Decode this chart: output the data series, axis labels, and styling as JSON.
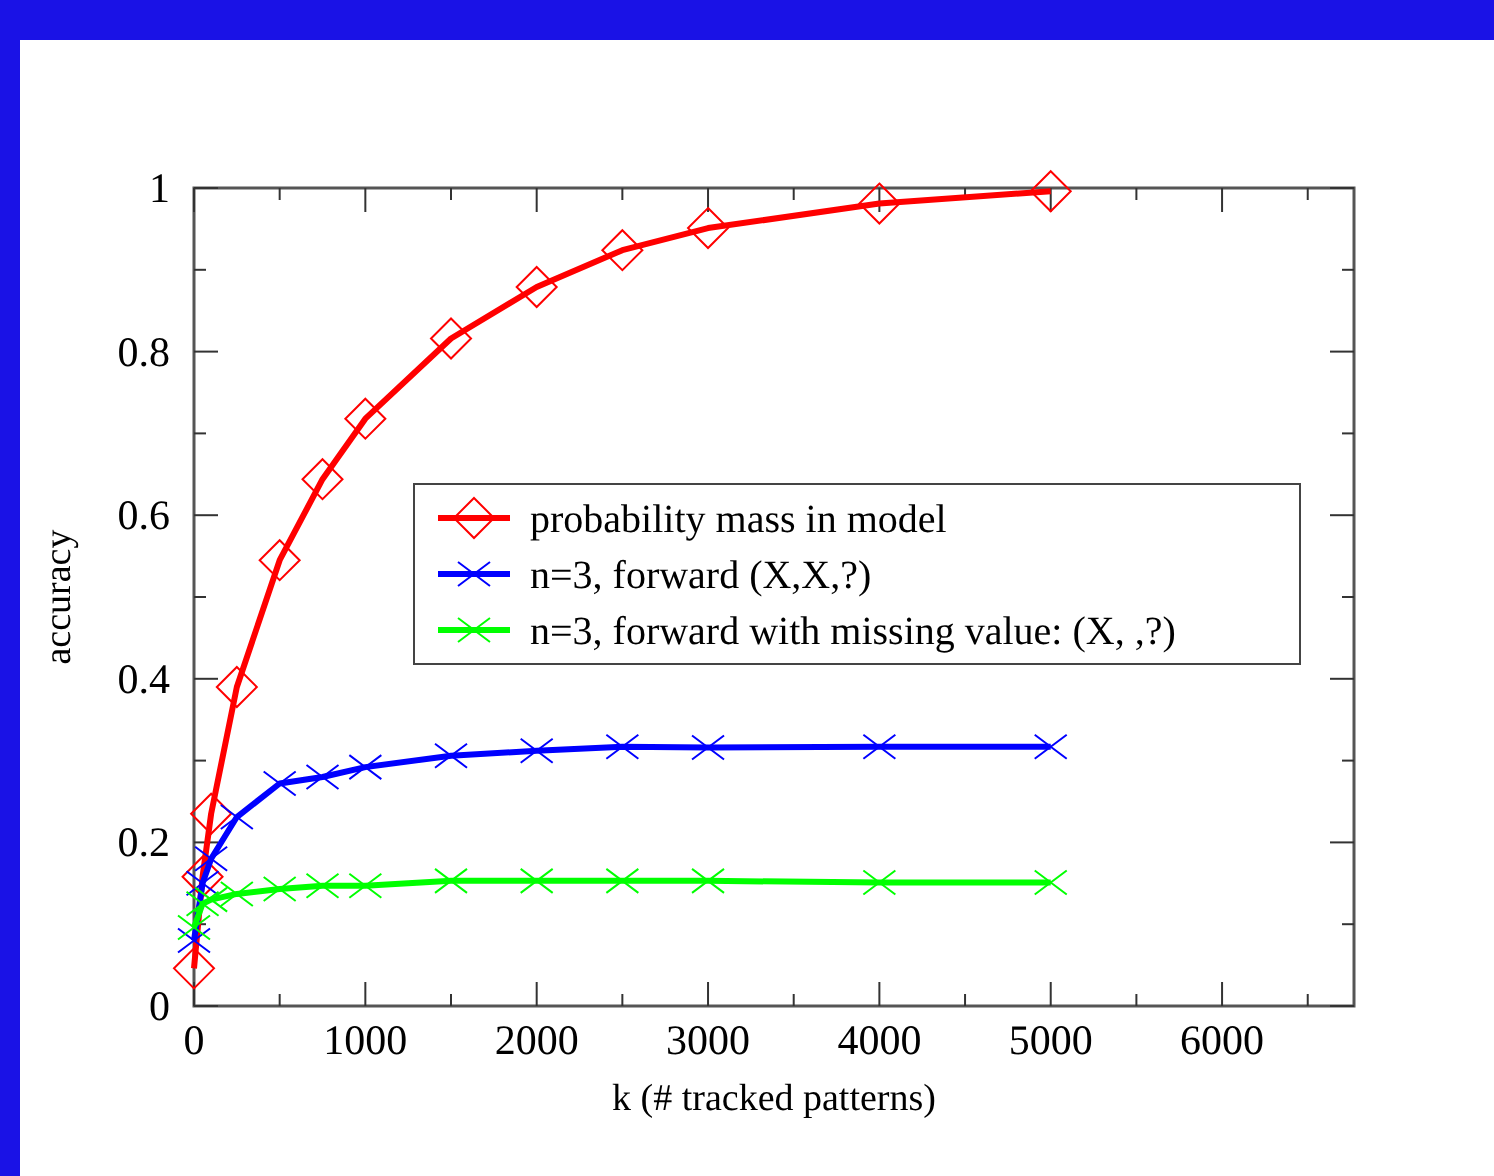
{
  "chart_data": {
    "type": "line",
    "xlabel": "k (# tracked patterns)",
    "ylabel": "accuracy",
    "xlim": [
      0,
      6770
    ],
    "ylim": [
      0,
      1
    ],
    "xticks": [
      0,
      {
        "value": 500,
        "label": null
      },
      1000,
      {
        "value": 1500,
        "label": null
      },
      2000,
      {
        "value": 2500,
        "label": null
      },
      3000,
      {
        "value": 3500,
        "label": null
      },
      4000,
      {
        "value": 4500,
        "label": null
      },
      5000,
      {
        "value": 5500,
        "label": null
      },
      6000,
      {
        "value": 6500,
        "label": null
      }
    ],
    "yticks": [
      0,
      {
        "value": 0.1,
        "label": null
      },
      0.2,
      {
        "value": 0.3,
        "label": null
      },
      0.4,
      {
        "value": 0.5,
        "label": null
      },
      0.6,
      {
        "value": 0.7,
        "label": null
      },
      0.8,
      {
        "value": 0.9,
        "label": null
      },
      1
    ],
    "grid": false,
    "legend": "right",
    "series": [
      {
        "name": "probability mass in model",
        "color": "#ff0000",
        "marker": "diamond",
        "x": [
          0,
          50,
          100,
          250,
          500,
          750,
          1000,
          1500,
          2000,
          2500,
          3000,
          4000,
          5000
        ],
        "values": [
          0.046,
          0.158,
          0.235,
          0.39,
          0.545,
          0.644,
          0.718,
          0.816,
          0.879,
          0.924,
          0.951,
          0.981,
          0.996
        ]
      },
      {
        "name": "n=3, forward (X,X,?)",
        "color": "#0000ff",
        "marker": "cross",
        "x": [
          0,
          50,
          100,
          250,
          500,
          750,
          1000,
          1500,
          2000,
          2500,
          3000,
          4000,
          5000
        ],
        "values": [
          0.08,
          0.15,
          0.18,
          0.231,
          0.272,
          0.28,
          0.292,
          0.306,
          0.312,
          0.317,
          0.316,
          0.317,
          0.317
        ]
      },
      {
        "name": "n=3, forward with missing value: (X, ,?)",
        "color": "#00ff00",
        "marker": "cross",
        "x": [
          0,
          50,
          100,
          250,
          500,
          750,
          1000,
          1500,
          2000,
          2500,
          3000,
          4000,
          5000
        ],
        "values": [
          0.096,
          0.125,
          0.13,
          0.137,
          0.143,
          0.147,
          0.147,
          0.153,
          0.153,
          0.153,
          0.153,
          0.151,
          0.151
        ]
      }
    ]
  }
}
